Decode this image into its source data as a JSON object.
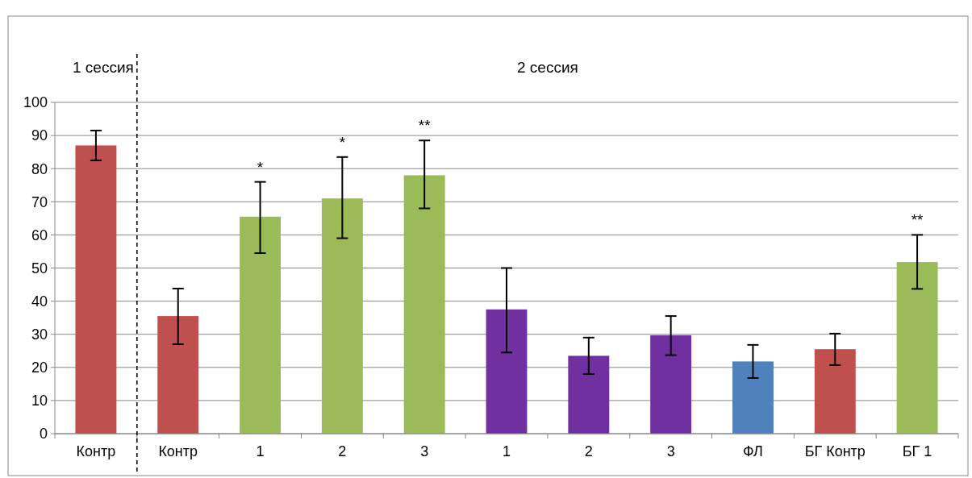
{
  "chart_data": {
    "type": "bar",
    "categories": [
      "Контр",
      "Контр",
      "1",
      "2",
      "3",
      "1",
      "2",
      "3",
      "ФЛ",
      "БГ Контр",
      "БГ 1"
    ],
    "values": [
      87,
      35.5,
      65.5,
      71,
      78,
      37.5,
      23.5,
      29.7,
      21.8,
      25.5,
      51.8
    ],
    "colors": [
      "#c0504d",
      "#c0504d",
      "#9bbb59",
      "#9bbb59",
      "#9bbb59",
      "#7030a0",
      "#7030a0",
      "#7030a0",
      "#4f81bd",
      "#c0504d",
      "#9bbb59"
    ],
    "errors": [
      [
        82.5,
        91.5
      ],
      [
        27,
        43.8
      ],
      [
        54.5,
        76
      ],
      [
        59,
        83.5
      ],
      [
        68,
        88.5
      ],
      [
        24.5,
        50
      ],
      [
        18,
        29
      ],
      [
        23.7,
        35.5
      ],
      [
        16.8,
        26.8
      ],
      [
        20.7,
        30.2
      ],
      [
        43.7,
        60
      ]
    ],
    "ylim": [
      0,
      100
    ],
    "yticks": [
      0,
      10,
      20,
      30,
      40,
      50,
      60,
      70,
      80,
      90,
      100
    ],
    "grid": "y",
    "annotations": [
      "1 сессия",
      "2 сессия",
      {
        "text": "*",
        "x": "1",
        "y": 76
      },
      {
        "text": "*",
        "x": "2",
        "y": 83.5
      },
      {
        "text": "**",
        "x": "3",
        "y": 88.5
      },
      {
        "text": "**",
        "x": "БГ 1",
        "y": 60
      }
    ]
  }
}
